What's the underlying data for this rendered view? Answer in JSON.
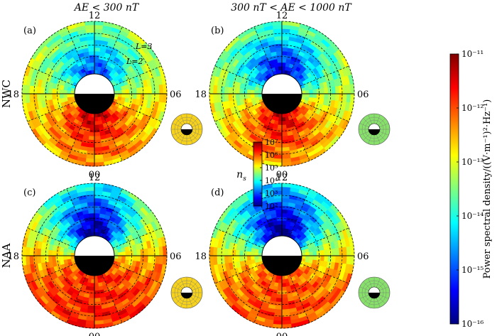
{
  "column_headers": [
    "AE < 300 nT",
    "300 nT < AE < 1000 nT"
  ],
  "row_headers": [
    "NWC",
    "NAA"
  ],
  "panel_labels": [
    "(a)",
    "(b)",
    "(c)",
    "(d)"
  ],
  "mlt_labels": {
    "top": "12",
    "left": "18",
    "right": "06",
    "bottom": "00"
  },
  "l_shell_labels": [
    "L=3",
    "L=2"
  ],
  "colors": {
    "colormap": [
      "#00007f",
      "#0000ff",
      "#007fff",
      "#00ffff",
      "#7fff7f",
      "#ffff00",
      "#ff7f00",
      "#ff0000",
      "#7f0000"
    ],
    "inset_yellow": "#f6d21c",
    "inset_green": "#86e06a"
  },
  "chart_data": {
    "type": "heatmap",
    "title": "",
    "coordinates": "L-shell vs magnetic local time (polar)",
    "l_shell_range": [
      1.5,
      3.0
    ],
    "mlt_range": [
      0,
      24
    ],
    "panels": [
      {
        "label": "(a)",
        "transmitter": "NWC",
        "ae_condition": "AE < 300 nT",
        "description": "red (~1e-12) on nightside 18-06 at L~1.5-2.2, blue/cyan on dayside near 12"
      },
      {
        "label": "(b)",
        "transmitter": "NWC",
        "ae_condition": "300 nT < AE < 1000 nT",
        "description": "red on nightside, strong blue on dayside inner L"
      },
      {
        "label": "(c)",
        "transmitter": "NAA",
        "ae_condition": "AE < 300 nT",
        "description": "broad orange-red everywhere except deep blue region around 12 MLT"
      },
      {
        "label": "(d)",
        "transmitter": "NAA",
        "ae_condition": "300 nT < AE < 1000 nT",
        "description": "orange-red nightside, blue dayside"
      }
    ],
    "colorbar_psd": {
      "label": "Power spectral density/((V·m⁻¹)²·Hz⁻¹)",
      "scale": "log",
      "range": [
        1e-16,
        1e-11
      ],
      "tick_labels": [
        "10⁻¹¹",
        "10⁻¹²",
        "10⁻¹³",
        "10⁻¹⁴",
        "10⁻¹⁵",
        "10⁻¹⁶"
      ]
    },
    "colorbar_ns": {
      "label": "n_s",
      "scale": "log",
      "range": [
        100.0,
        10000000.0
      ],
      "tick_labels": [
        "10⁷",
        "10⁶",
        "10⁵",
        "10⁴",
        "10³",
        "10²"
      ]
    }
  }
}
